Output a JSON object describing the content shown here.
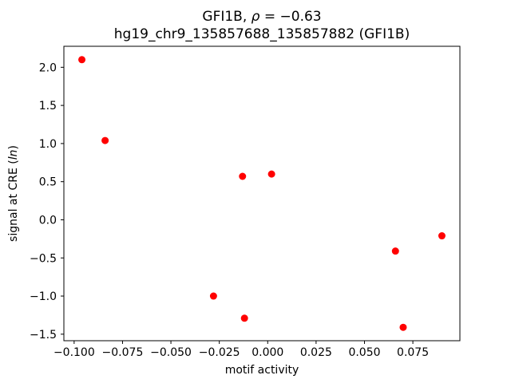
{
  "chart_data": {
    "type": "scatter",
    "title": {
      "prefix": "GFI1B, ",
      "math_italic": "ρ",
      "suffix": " = −0.63"
    },
    "subtitle": "hg19_chr9_135857688_135857882 (GFI1B)",
    "xlabel": "motif activity",
    "ylabel": {
      "prefix": "signal at CRE (",
      "italic": "ln",
      "suffix": ")"
    },
    "marker_color": "#ff0000",
    "axis_color": "#000000",
    "grid": false,
    "legend_position": "none",
    "xlim": [
      -0.1053,
      0.0993
    ],
    "ylim": [
      -1.5855,
      2.2755
    ],
    "x_ticks": [
      -0.1,
      -0.075,
      -0.05,
      -0.025,
      0.0,
      0.025,
      0.05,
      0.075
    ],
    "x_tick_labels": [
      "−0.100",
      "−0.075",
      "−0.050",
      "−0.025",
      "0.000",
      "0.025",
      "0.050",
      "0.075"
    ],
    "y_ticks": [
      -1.5,
      -1.0,
      -0.5,
      0.0,
      0.5,
      1.0,
      1.5,
      2.0
    ],
    "y_tick_labels": [
      "−1.5",
      "−1.0",
      "−0.5",
      "0.0",
      "0.5",
      "1.0",
      "1.5",
      "2.0"
    ],
    "points": [
      {
        "x": -0.096,
        "y": 2.1
      },
      {
        "x": -0.084,
        "y": 1.04
      },
      {
        "x": -0.013,
        "y": 0.57
      },
      {
        "x": 0.002,
        "y": 0.6
      },
      {
        "x": -0.028,
        "y": -1.0
      },
      {
        "x": -0.012,
        "y": -1.29
      },
      {
        "x": 0.066,
        "y": -0.41
      },
      {
        "x": 0.09,
        "y": -0.21
      },
      {
        "x": 0.07,
        "y": -1.41
      }
    ]
  }
}
